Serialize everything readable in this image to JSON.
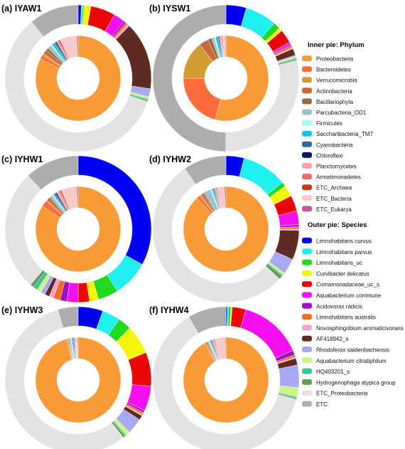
{
  "figure": {
    "inner_legend_title": "Inner pie: Phylum",
    "outer_legend_title": "Outer pie: Species"
  },
  "phyla": [
    {
      "name": "Proteobacteria",
      "color": "#F89B37"
    },
    {
      "name": "Bacteroidetes",
      "color": "#FF6B3A"
    },
    {
      "name": "Verrucomicrobia",
      "color": "#D29C33"
    },
    {
      "name": "Actinobacteria",
      "color": "#C8693A"
    },
    {
      "name": "Bacillariophyta",
      "color": "#9E6542"
    },
    {
      "name": "Parcubacteria_OD1",
      "color": "#9CC4C8"
    },
    {
      "name": "Firmicutes",
      "color": "#A7FBF6"
    },
    {
      "name": "Saccharibacteria_TM7",
      "color": "#17C4E8"
    },
    {
      "name": "Cyanobacteria",
      "color": "#2C6B9E"
    },
    {
      "name": "Chloroflexi",
      "color": "#0B1660"
    },
    {
      "name": "Planctomycetes",
      "color": "#F8A3A3"
    },
    {
      "name": "Armatimonadetes",
      "color": "#F06A6A"
    },
    {
      "name": "ETC_Archaea",
      "color": "#C23B1E"
    },
    {
      "name": "ETC_Bacteria",
      "color": "#F8C9CB"
    },
    {
      "name": "ETC_Eukarya",
      "color": "#C45898"
    }
  ],
  "species": [
    {
      "name": "Limnohabitans curvus",
      "color": "#0000F2"
    },
    {
      "name": "Limnohabitans parvus",
      "color": "#1FF0F0"
    },
    {
      "name": "Limnohabitans_uc",
      "color": "#22D922"
    },
    {
      "name": "Curvibacter delicatus",
      "color": "#F5F50A"
    },
    {
      "name": "Comamonadaceae_uc_s",
      "color": "#EA0707"
    },
    {
      "name": "Aquabacterium commune",
      "color": "#F50FF0"
    },
    {
      "name": "Acidovorax radicis",
      "color": "#9A12C4"
    },
    {
      "name": "Limnohabitans australis",
      "color": "#F26C1D"
    },
    {
      "name": "Novosphingobium aromaticivorans",
      "color": "#F2A0CE"
    },
    {
      "name": "AF418942_s",
      "color": "#5E2A22"
    },
    {
      "name": "Rhodoferax saidenbachensis",
      "color": "#A8A8F4"
    },
    {
      "name": "Aquabacterium citratiphilum",
      "color": "#CCF585"
    },
    {
      "name": "HQ403201_s",
      "color": "#3CC496"
    },
    {
      "name": "Hydrogenophaga atypica group",
      "color": "#5F9C5E"
    },
    {
      "name": "ETC_Proteobacteria",
      "color": "#E3E3E3"
    },
    {
      "name": "ETC",
      "color": "#ADADAD"
    }
  ],
  "chart_data": [
    {
      "type": "pie",
      "title": "(a) IYAW1",
      "inner": [
        {
          "label": "Proteobacteria",
          "value": 82.5
        },
        {
          "label": "Bacteroidetes",
          "value": 1.5
        },
        {
          "label": "Verrucomicrobia",
          "value": 0.8
        },
        {
          "label": "Actinobacteria",
          "value": 1.5
        },
        {
          "label": "Bacillariophyta",
          "value": 1.0
        },
        {
          "label": "Parcubacteria_OD1",
          "value": 1.5
        },
        {
          "label": "Firmicutes",
          "value": 0.5
        },
        {
          "label": "Saccharibacteria_TM7",
          "value": 1.0
        },
        {
          "label": "Cyanobacteria",
          "value": 0.5
        },
        {
          "label": "Chloroflexi",
          "value": 0.5
        },
        {
          "label": "Planctomycetes",
          "value": 0.5
        },
        {
          "label": "Armatimonadetes",
          "value": 0.5
        },
        {
          "label": "ETC_Archaea",
          "value": 0.5
        },
        {
          "label": "ETC_Bacteria",
          "value": 6.5
        },
        {
          "label": "ETC_Eukarya",
          "value": 0.5
        }
      ],
      "outer": [
        {
          "label": "Limnohabitans curvus",
          "value": 0.7
        },
        {
          "label": "Limnohabitans parvus",
          "value": 0.3
        },
        {
          "label": "Limnohabitans_uc",
          "value": 0.3
        },
        {
          "label": "Curvibacter delicatus",
          "value": 1.5
        },
        {
          "label": "Comamonadaceae_uc_s",
          "value": 5.5
        },
        {
          "label": "Aquabacterium commune",
          "value": 2.5
        },
        {
          "label": "Acidovorax radicis",
          "value": 0.5
        },
        {
          "label": "Limnohabitans australis",
          "value": 0.5
        },
        {
          "label": "Novosphingobium aromaticivorans",
          "value": 0.5
        },
        {
          "label": "AF418942_s",
          "value": 15.0
        },
        {
          "label": "Rhodoferax saidenbachensis",
          "value": 1.8
        },
        {
          "label": "Aquabacterium citratiphilum",
          "value": 0.5
        },
        {
          "label": "HQ403201_s",
          "value": 0.3
        },
        {
          "label": "Hydrogenophaga atypica group",
          "value": 0.3
        },
        {
          "label": "ETC_Proteobacteria",
          "value": 58.8
        },
        {
          "label": "ETC",
          "value": 11.0
        }
      ]
    },
    {
      "type": "pie",
      "title": "(b) IYSW1",
      "inner": [
        {
          "label": "Proteobacteria",
          "value": 54.0
        },
        {
          "label": "Bacteroidetes",
          "value": 21.0
        },
        {
          "label": "Verrucomicrobia",
          "value": 14.5
        },
        {
          "label": "Actinobacteria",
          "value": 3.5
        },
        {
          "label": "Bacillariophyta",
          "value": 1.5
        },
        {
          "label": "Parcubacteria_OD1",
          "value": 1.0
        },
        {
          "label": "Firmicutes",
          "value": 0.5
        },
        {
          "label": "Saccharibacteria_TM7",
          "value": 0.8
        },
        {
          "label": "Cyanobacteria",
          "value": 0.5
        },
        {
          "label": "Chloroflexi",
          "value": 0.3
        },
        {
          "label": "Planctomycetes",
          "value": 0.5
        },
        {
          "label": "Armatimonadetes",
          "value": 0.3
        },
        {
          "label": "ETC_Archaea",
          "value": 0.3
        },
        {
          "label": "ETC_Bacteria",
          "value": 1.0
        },
        {
          "label": "ETC_Eukarya",
          "value": 0.3
        }
      ],
      "outer": [
        {
          "label": "Limnohabitans curvus",
          "value": 4.5
        },
        {
          "label": "Limnohabitans parvus",
          "value": 7.0
        },
        {
          "label": "Limnohabitans_uc",
          "value": 1.5
        },
        {
          "label": "Curvibacter delicatus",
          "value": 0.8
        },
        {
          "label": "Comamonadaceae_uc_s",
          "value": 3.0
        },
        {
          "label": "Aquabacterium commune",
          "value": 0.5
        },
        {
          "label": "Acidovorax radicis",
          "value": 0.3
        },
        {
          "label": "Limnohabitans australis",
          "value": 0.5
        },
        {
          "label": "Novosphingobium aromaticivorans",
          "value": 0.3
        },
        {
          "label": "AF418942_s",
          "value": 1.5
        },
        {
          "label": "Rhodoferax saidenbachensis",
          "value": 0.3
        },
        {
          "label": "Aquabacterium citratiphilum",
          "value": 0.3
        },
        {
          "label": "HQ403201_s",
          "value": 0.3
        },
        {
          "label": "Hydrogenophaga atypica group",
          "value": 0.3
        },
        {
          "label": "ETC_Proteobacteria",
          "value": 29.0
        },
        {
          "label": "ETC",
          "value": 50.0
        }
      ]
    },
    {
      "type": "pie",
      "title": "(c) IYHW1",
      "inner": [
        {
          "label": "Proteobacteria",
          "value": 84.0
        },
        {
          "label": "Bacteroidetes",
          "value": 2.5
        },
        {
          "label": "Verrucomicrobia",
          "value": 0.5
        },
        {
          "label": "Actinobacteria",
          "value": 1.0
        },
        {
          "label": "Bacillariophyta",
          "value": 0.5
        },
        {
          "label": "Parcubacteria_OD1",
          "value": 1.0
        },
        {
          "label": "Firmicutes",
          "value": 0.5
        },
        {
          "label": "Saccharibacteria_TM7",
          "value": 0.5
        },
        {
          "label": "Cyanobacteria",
          "value": 0.5
        },
        {
          "label": "Chloroflexi",
          "value": 0.5
        },
        {
          "label": "Planctomycetes",
          "value": 1.0
        },
        {
          "label": "Armatimonadetes",
          "value": 0.5
        },
        {
          "label": "ETC_Archaea",
          "value": 0.5
        },
        {
          "label": "ETC_Bacteria",
          "value": 6.0
        },
        {
          "label": "ETC_Eukarya",
          "value": 0.5
        }
      ],
      "outer": [
        {
          "label": "Limnohabitans curvus",
          "value": 33.0
        },
        {
          "label": "Limnohabitans parvus",
          "value": 8.0
        },
        {
          "label": "Limnohabitans_uc",
          "value": 4.5
        },
        {
          "label": "Curvibacter delicatus",
          "value": 2.0
        },
        {
          "label": "Comamonadaceae_uc_s",
          "value": 2.5
        },
        {
          "label": "Aquabacterium commune",
          "value": 2.5
        },
        {
          "label": "Acidovorax radicis",
          "value": 1.5
        },
        {
          "label": "Limnohabitans australis",
          "value": 1.5
        },
        {
          "label": "Novosphingobium aromaticivorans",
          "value": 1.0
        },
        {
          "label": "AF418942_s",
          "value": 1.0
        },
        {
          "label": "Rhodoferax saidenbachensis",
          "value": 1.0
        },
        {
          "label": "Aquabacterium citratiphilum",
          "value": 1.0
        },
        {
          "label": "HQ403201_s",
          "value": 1.0
        },
        {
          "label": "Hydrogenophaga atypica group",
          "value": 0.8
        },
        {
          "label": "ETC_Proteobacteria",
          "value": 26.7
        },
        {
          "label": "ETC",
          "value": 12.0
        }
      ]
    },
    {
      "type": "pie",
      "title": "(d) IYHW2",
      "inner": [
        {
          "label": "Proteobacteria",
          "value": 88.0
        },
        {
          "label": "Bacteroidetes",
          "value": 1.5
        },
        {
          "label": "Verrucomicrobia",
          "value": 0.5
        },
        {
          "label": "Actinobacteria",
          "value": 1.0
        },
        {
          "label": "Bacillariophyta",
          "value": 0.5
        },
        {
          "label": "Parcubacteria_OD1",
          "value": 2.5
        },
        {
          "label": "Firmicutes",
          "value": 0.5
        },
        {
          "label": "Saccharibacteria_TM7",
          "value": 0.5
        },
        {
          "label": "Cyanobacteria",
          "value": 0.3
        },
        {
          "label": "Chloroflexi",
          "value": 0.3
        },
        {
          "label": "Planctomycetes",
          "value": 0.5
        },
        {
          "label": "Armatimonadetes",
          "value": 0.3
        },
        {
          "label": "ETC_Archaea",
          "value": 0.3
        },
        {
          "label": "ETC_Bacteria",
          "value": 2.8
        },
        {
          "label": "ETC_Eukarya",
          "value": 0.5
        }
      ],
      "outer": [
        {
          "label": "Limnohabitans curvus",
          "value": 4.0
        },
        {
          "label": "Limnohabitans parvus",
          "value": 10.0
        },
        {
          "label": "Limnohabitans_uc",
          "value": 1.0
        },
        {
          "label": "Curvibacter delicatus",
          "value": 2.5
        },
        {
          "label": "Comamonadaceae_uc_s",
          "value": 3.5
        },
        {
          "label": "Aquabacterium commune",
          "value": 3.0
        },
        {
          "label": "Acidovorax radicis",
          "value": 0.5
        },
        {
          "label": "Limnohabitans australis",
          "value": 0.5
        },
        {
          "label": "Novosphingobium aromaticivorans",
          "value": 0.3
        },
        {
          "label": "AF418942_s",
          "value": 6.5
        },
        {
          "label": "Rhodoferax saidenbachensis",
          "value": 3.5
        },
        {
          "label": "Aquabacterium citratiphilum",
          "value": 0.5
        },
        {
          "label": "HQ403201_s",
          "value": 0.3
        },
        {
          "label": "Hydrogenophaga atypica group",
          "value": 0.8
        },
        {
          "label": "ETC_Proteobacteria",
          "value": 53.6
        },
        {
          "label": "ETC",
          "value": 9.5
        }
      ]
    },
    {
      "type": "pie",
      "title": "(e) IYHW3",
      "inner": [
        {
          "label": "Proteobacteria",
          "value": 96.0
        },
        {
          "label": "Bacteroidetes",
          "value": 0.5
        },
        {
          "label": "Verrucomicrobia",
          "value": 0.3
        },
        {
          "label": "Actinobacteria",
          "value": 0.3
        },
        {
          "label": "Bacillariophyta",
          "value": 0.3
        },
        {
          "label": "Parcubacteria_OD1",
          "value": 0.5
        },
        {
          "label": "Firmicutes",
          "value": 0.3
        },
        {
          "label": "Saccharibacteria_TM7",
          "value": 0.5
        },
        {
          "label": "Cyanobacteria",
          "value": 0.3
        },
        {
          "label": "Chloroflexi",
          "value": 0.3
        },
        {
          "label": "Planctomycetes",
          "value": 0.3
        },
        {
          "label": "Armatimonadetes",
          "value": 0.2
        },
        {
          "label": "ETC_Archaea",
          "value": 0.2
        },
        {
          "label": "ETC_Bacteria",
          "value": 0.5
        },
        {
          "label": "ETC_Eukarya",
          "value": 0.3
        }
      ],
      "outer": [
        {
          "label": "Limnohabitans curvus",
          "value": 5.5
        },
        {
          "label": "Limnohabitans parvus",
          "value": 4.0
        },
        {
          "label": "Limnohabitans_uc",
          "value": 3.0
        },
        {
          "label": "Curvibacter delicatus",
          "value": 6.5
        },
        {
          "label": "Comamonadaceae_uc_s",
          "value": 7.5
        },
        {
          "label": "Aquabacterium commune",
          "value": 5.5
        },
        {
          "label": "Acidovorax radicis",
          "value": 0.5
        },
        {
          "label": "Limnohabitans australis",
          "value": 0.5
        },
        {
          "label": "Novosphingobium aromaticivorans",
          "value": 0.3
        },
        {
          "label": "AF418942_s",
          "value": 1.0
        },
        {
          "label": "Rhodoferax saidenbachensis",
          "value": 3.5
        },
        {
          "label": "Aquabacterium citratiphilum",
          "value": 1.0
        },
        {
          "label": "HQ403201_s",
          "value": 0.3
        },
        {
          "label": "Hydrogenophaga atypica group",
          "value": 0.5
        },
        {
          "label": "ETC_Proteobacteria",
          "value": 56.4
        },
        {
          "label": "ETC",
          "value": 4.5
        }
      ]
    },
    {
      "type": "pie",
      "title": "(f) IYHW4",
      "inner": [
        {
          "label": "Proteobacteria",
          "value": 91.0
        },
        {
          "label": "Bacteroidetes",
          "value": 0.5
        },
        {
          "label": "Verrucomicrobia",
          "value": 0.3
        },
        {
          "label": "Actinobacteria",
          "value": 0.5
        },
        {
          "label": "Bacillariophyta",
          "value": 0.3
        },
        {
          "label": "Parcubacteria_OD1",
          "value": 0.5
        },
        {
          "label": "Firmicutes",
          "value": 0.3
        },
        {
          "label": "Saccharibacteria_TM7",
          "value": 0.3
        },
        {
          "label": "Cyanobacteria",
          "value": 0.3
        },
        {
          "label": "Chloroflexi",
          "value": 0.3
        },
        {
          "label": "Planctomycetes",
          "value": 0.5
        },
        {
          "label": "Armatimonadetes",
          "value": 0.3
        },
        {
          "label": "ETC_Archaea",
          "value": 0.3
        },
        {
          "label": "ETC_Bacteria",
          "value": 4.0
        },
        {
          "label": "ETC_Eukarya",
          "value": 0.3
        }
      ],
      "outer": [
        {
          "label": "Limnohabitans curvus",
          "value": 0.3
        },
        {
          "label": "Limnohabitans parvus",
          "value": 0.3
        },
        {
          "label": "Limnohabitans_uc",
          "value": 0.5
        },
        {
          "label": "Curvibacter delicatus",
          "value": 0.3
        },
        {
          "label": "Comamonadaceae_uc_s",
          "value": 3.0
        },
        {
          "label": "Aquabacterium commune",
          "value": 14.0
        },
        {
          "label": "Acidovorax radicis",
          "value": 1.0
        },
        {
          "label": "Limnohabitans australis",
          "value": 0.5
        },
        {
          "label": "Novosphingobium aromaticivorans",
          "value": 0.3
        },
        {
          "label": "AF418942_s",
          "value": 1.5
        },
        {
          "label": "Rhodoferax saidenbachensis",
          "value": 5.0
        },
        {
          "label": "Aquabacterium citratiphilum",
          "value": 2.0
        },
        {
          "label": "HQ403201_s",
          "value": 0.3
        },
        {
          "label": "Hydrogenophaga atypica group",
          "value": 0.3
        },
        {
          "label": "ETC_Proteobacteria",
          "value": 62.2
        },
        {
          "label": "ETC",
          "value": 8.5
        }
      ]
    }
  ]
}
